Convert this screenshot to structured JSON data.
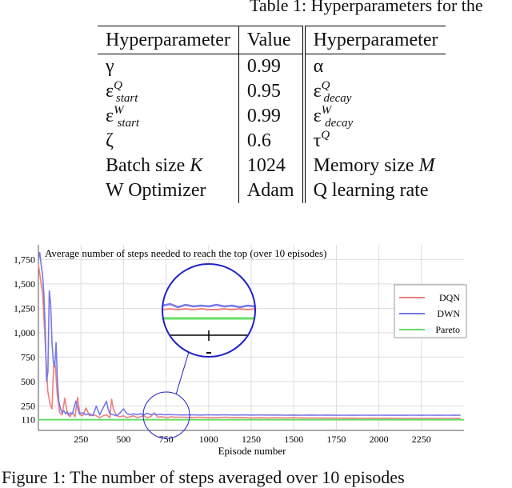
{
  "table_caption": "Table 1: Hyperparameters for the",
  "table": {
    "headers": [
      "Hyperparameter",
      "Value",
      "Hyperparameter"
    ],
    "rows": [
      {
        "p1": "γ",
        "v": "0.99",
        "p2": "α"
      },
      {
        "p1": "ε",
        "p1_sup": "Q",
        "p1_sub": "start",
        "v": "0.95",
        "p2": "ε",
        "p2_sup": "Q",
        "p2_sub": "decay"
      },
      {
        "p1": "ε",
        "p1_sup": "W",
        "p1_sub": "start",
        "v": "0.99",
        "p2": "ε",
        "p2_sup": "W",
        "p2_sub": "decay"
      },
      {
        "p1": "ζ",
        "v": "0.6",
        "p2": "τ",
        "p2_sup": "Q"
      },
      {
        "p1": "Batch size ",
        "p1_italic": "K",
        "v": "1024",
        "p2": "Memory size ",
        "p2_italic": "M"
      },
      {
        "p1": "W Optimizer",
        "v": "Adam",
        "p2": "Q learning rate"
      }
    ]
  },
  "figure_caption": "Figure 1: The number of steps averaged over 10 episodes",
  "chart_data": {
    "type": "line",
    "title": "Average number of steps needed to reach the top (over 10 episodes)",
    "xlabel": "Episode number",
    "ylabel": "",
    "xlim": [
      0,
      2500
    ],
    "ylim": [
      0,
      1900
    ],
    "x_ticks": [
      250,
      500,
      750,
      1000,
      1250,
      1500,
      1750,
      2000,
      2250
    ],
    "y_ticks": [
      110,
      250,
      500,
      750,
      1000,
      1250,
      1500,
      1750
    ],
    "y_tick_labels": [
      "110",
      "250",
      "500",
      "750",
      "1,000",
      "1,250",
      "1,500",
      "1,750"
    ],
    "grid": true,
    "legend_position": "right",
    "series": [
      {
        "name": "DQN",
        "color": "#f07f7f",
        "points": [
          [
            0,
            1700
          ],
          [
            12,
            1550
          ],
          [
            25,
            1400
          ],
          [
            40,
            900
          ],
          [
            55,
            400
          ],
          [
            70,
            260
          ],
          [
            80,
            220
          ],
          [
            90,
            700
          ],
          [
            100,
            650
          ],
          [
            110,
            380
          ],
          [
            125,
            180
          ],
          [
            140,
            160
          ],
          [
            155,
            330
          ],
          [
            170,
            170
          ],
          [
            185,
            140
          ],
          [
            200,
            180
          ],
          [
            215,
            140
          ],
          [
            230,
            340
          ],
          [
            245,
            160
          ],
          [
            260,
            150
          ],
          [
            280,
            230
          ],
          [
            300,
            150
          ],
          [
            320,
            160
          ],
          [
            340,
            150
          ],
          [
            360,
            130
          ],
          [
            380,
            150
          ],
          [
            400,
            160
          ],
          [
            420,
            130
          ],
          [
            430,
            320
          ],
          [
            440,
            220
          ],
          [
            460,
            150
          ],
          [
            480,
            140
          ],
          [
            500,
            150
          ],
          [
            520,
            130
          ],
          [
            540,
            140
          ],
          [
            560,
            150
          ],
          [
            580,
            130
          ],
          [
            600,
            140
          ],
          [
            620,
            150
          ],
          [
            640,
            130
          ],
          [
            660,
            140
          ],
          [
            680,
            180
          ],
          [
            700,
            135
          ],
          [
            720,
            140
          ],
          [
            740,
            135
          ],
          [
            760,
            130
          ],
          [
            780,
            140
          ],
          [
            800,
            135
          ],
          [
            850,
            135
          ],
          [
            900,
            133
          ],
          [
            950,
            135
          ],
          [
            1000,
            130
          ],
          [
            1050,
            132
          ],
          [
            1100,
            135
          ],
          [
            1150,
            130
          ],
          [
            1200,
            133
          ],
          [
            1250,
            128
          ],
          [
            1300,
            130
          ],
          [
            1350,
            128
          ],
          [
            1400,
            130
          ],
          [
            1450,
            128
          ],
          [
            1500,
            130
          ],
          [
            1550,
            128
          ],
          [
            1600,
            127
          ],
          [
            1650,
            128
          ],
          [
            1700,
            126
          ],
          [
            1750,
            127
          ],
          [
            1800,
            125
          ],
          [
            1850,
            126
          ],
          [
            1900,
            124
          ],
          [
            1950,
            125
          ],
          [
            2000,
            124
          ],
          [
            2050,
            125
          ],
          [
            2100,
            124
          ],
          [
            2150,
            123
          ],
          [
            2200,
            124
          ],
          [
            2250,
            123
          ],
          [
            2300,
            124
          ],
          [
            2350,
            122
          ],
          [
            2400,
            123
          ],
          [
            2450,
            122
          ],
          [
            2480,
            124
          ]
        ]
      },
      {
        "name": "DWN",
        "color": "#7878e8",
        "points": [
          [
            0,
            1750
          ],
          [
            8,
            1820
          ],
          [
            16,
            1700
          ],
          [
            24,
            1600
          ],
          [
            32,
            1400
          ],
          [
            40,
            1050
          ],
          [
            48,
            500
          ],
          [
            56,
            600
          ],
          [
            64,
            1430
          ],
          [
            72,
            1300
          ],
          [
            80,
            900
          ],
          [
            88,
            700
          ],
          [
            96,
            650
          ],
          [
            104,
            900
          ],
          [
            112,
            500
          ],
          [
            120,
            300
          ],
          [
            130,
            220
          ],
          [
            140,
            180
          ],
          [
            150,
            200
          ],
          [
            160,
            170
          ],
          [
            170,
            190
          ],
          [
            180,
            160
          ],
          [
            190,
            180
          ],
          [
            200,
            170
          ],
          [
            220,
            300
          ],
          [
            240,
            170
          ],
          [
            260,
            180
          ],
          [
            280,
            160
          ],
          [
            300,
            170
          ],
          [
            320,
            150
          ],
          [
            340,
            250
          ],
          [
            360,
            160
          ],
          [
            380,
            230
          ],
          [
            400,
            300
          ],
          [
            410,
            220
          ],
          [
            420,
            170
          ],
          [
            440,
            160
          ],
          [
            460,
            150
          ],
          [
            480,
            180
          ],
          [
            500,
            220
          ],
          [
            520,
            170
          ],
          [
            540,
            160
          ],
          [
            560,
            170
          ],
          [
            580,
            160
          ],
          [
            600,
            170
          ],
          [
            620,
            160
          ],
          [
            640,
            175
          ],
          [
            660,
            160
          ],
          [
            680,
            170
          ],
          [
            700,
            160
          ],
          [
            720,
            165
          ],
          [
            740,
            160
          ],
          [
            760,
            162
          ],
          [
            800,
            160
          ],
          [
            850,
            158
          ],
          [
            900,
            160
          ],
          [
            950,
            157
          ],
          [
            1000,
            160
          ],
          [
            1050,
            158
          ],
          [
            1100,
            160
          ],
          [
            1150,
            157
          ],
          [
            1200,
            159
          ],
          [
            1250,
            157
          ],
          [
            1300,
            158
          ],
          [
            1350,
            157
          ],
          [
            1400,
            158
          ],
          [
            1450,
            156
          ],
          [
            1500,
            157
          ],
          [
            1550,
            156
          ],
          [
            1600,
            157
          ],
          [
            1650,
            156
          ],
          [
            1700,
            157
          ],
          [
            1750,
            155
          ],
          [
            1800,
            156
          ],
          [
            1850,
            155
          ],
          [
            1900,
            156
          ],
          [
            1950,
            155
          ],
          [
            2000,
            156
          ],
          [
            2050,
            155
          ],
          [
            2100,
            155
          ],
          [
            2150,
            155
          ],
          [
            2200,
            156
          ],
          [
            2250,
            155
          ],
          [
            2300,
            156
          ],
          [
            2350,
            155
          ],
          [
            2400,
            156
          ],
          [
            2450,
            155
          ],
          [
            2480,
            156
          ]
        ]
      },
      {
        "name": "Pareto",
        "color": "#66dd66",
        "points": [
          [
            0,
            110
          ],
          [
            2500,
            110
          ]
        ]
      }
    ]
  },
  "colors": {
    "magnifier": "#2222cc"
  }
}
